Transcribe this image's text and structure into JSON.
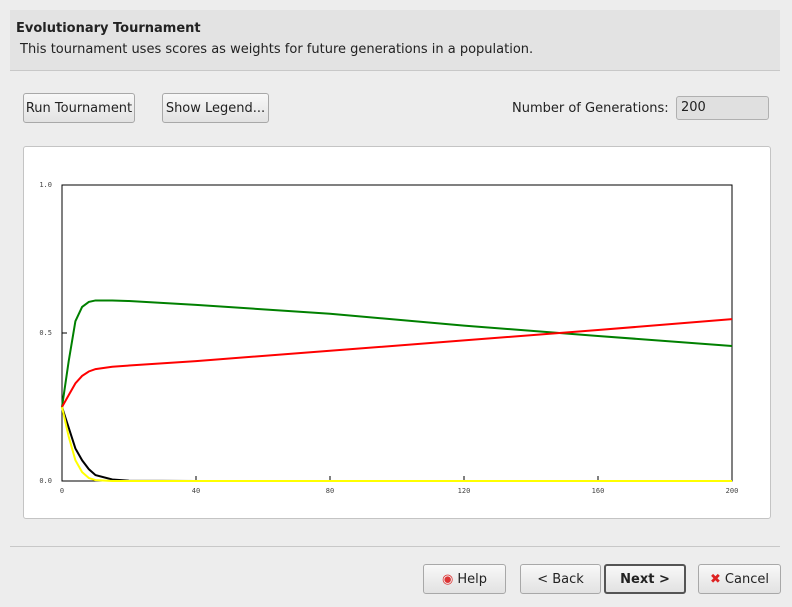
{
  "header": {
    "title": "Evolutionary Tournament",
    "subtitle": "This tournament uses scores as weights for future generations in a population."
  },
  "toolbar": {
    "run_button": "Run Tournament",
    "legend_button": "Show Legend...",
    "generations_label": "Number of Generations:",
    "generations_value": 200
  },
  "chart_data": {
    "type": "line",
    "x": [
      0,
      2,
      4,
      6,
      8,
      10,
      15,
      20,
      40,
      80,
      120,
      160,
      200
    ],
    "series": [
      {
        "color": "#008000",
        "values": [
          0.25,
          0.405,
          0.54,
          0.588,
          0.605,
          0.61,
          0.61,
          0.608,
          0.595,
          0.565,
          0.525,
          0.49,
          0.456
        ]
      },
      {
        "color": "#ff0000",
        "values": [
          0.25,
          0.29,
          0.33,
          0.355,
          0.37,
          0.378,
          0.386,
          0.39,
          0.405,
          0.44,
          0.475,
          0.51,
          0.547
        ]
      },
      {
        "color": "#000000",
        "values": [
          0.25,
          0.18,
          0.11,
          0.07,
          0.04,
          0.02,
          0.005,
          0.001,
          0,
          0,
          0,
          0,
          0
        ]
      },
      {
        "color": "#ffff00",
        "values": [
          0.25,
          0.15,
          0.07,
          0.03,
          0.01,
          0.003,
          0,
          0,
          0,
          0,
          0,
          0,
          0
        ]
      }
    ],
    "xlim": [
      0,
      200
    ],
    "xticks": [
      0,
      40,
      80,
      120,
      160,
      200
    ],
    "ylim": [
      0,
      1
    ],
    "yticks": [
      {
        "value": 0,
        "label": "0.0"
      },
      {
        "value": 0.5,
        "label": "0.5"
      },
      {
        "value": 1,
        "label": "1.0"
      }
    ]
  },
  "footer": {
    "help": "Help",
    "back": "< Back",
    "next": "Next >",
    "cancel": "Cancel"
  }
}
